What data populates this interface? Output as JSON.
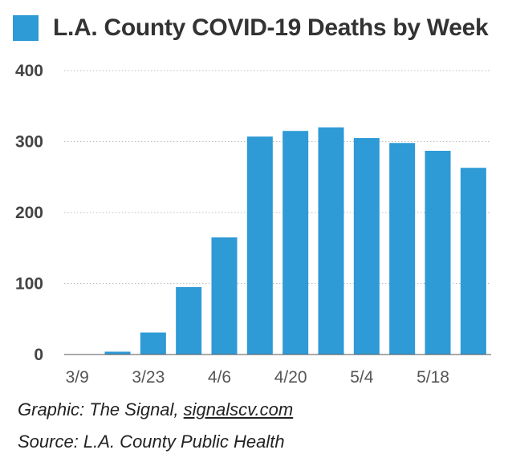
{
  "chart_data": {
    "type": "bar",
    "title": "L.A. County COVID-19 Deaths by Week",
    "xlabel": "",
    "ylabel": "",
    "ylim": [
      0,
      400
    ],
    "yticks": [
      0,
      100,
      200,
      300,
      400
    ],
    "grid": true,
    "legend": "top-left",
    "x_tick_labels": [
      "3/9",
      "3/23",
      "4/6",
      "4/20",
      "5/4",
      "5/18"
    ],
    "categories": [
      "3/9",
      "3/16",
      "3/23",
      "3/30",
      "4/6",
      "4/13",
      "4/20",
      "4/27",
      "5/4",
      "5/11",
      "5/18",
      "5/25"
    ],
    "series": [
      {
        "name": "L.A. County COVID-19 Deaths by Week",
        "color": "#2e9ad6",
        "values": [
          0,
          4,
          31,
          95,
          165,
          307,
          315,
          320,
          305,
          298,
          287,
          263
        ]
      }
    ]
  },
  "footer": {
    "credit_prefix": "Graphic: The Signal, ",
    "credit_link": "signalscv.com",
    "source": "Source: L.A. County Public Health"
  }
}
